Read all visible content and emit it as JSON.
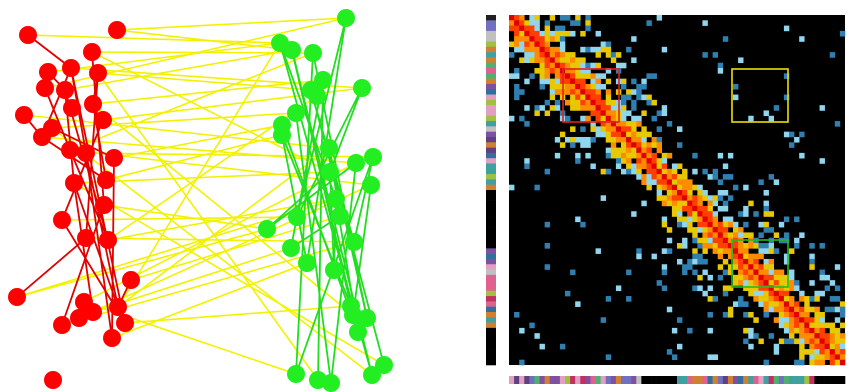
{
  "colors": {
    "background": "#ffffff",
    "group_a_node": "#ff0000",
    "group_a_edge": "#e00000",
    "group_b_node": "#22ee22",
    "group_b_edge": "#22dd22",
    "between_edge": "#f2f200",
    "matrix_background": "#000000",
    "highlight_red": "#e02020",
    "highlight_yellow": "#e8e000",
    "highlight_green": "#22bb22"
  },
  "network": {
    "group_a": {
      "name": "",
      "node_count": 33
    },
    "group_b": {
      "name": "",
      "node_count": 33
    }
  },
  "matrix": {
    "size": 66,
    "scale_colors": [
      "#000000",
      "#2f7fb0",
      "#8fd6ee",
      "#e8c800",
      "#ff8c00",
      "#ff4000",
      "#e00000"
    ],
    "highlight_boxes": [
      {
        "id": "red",
        "label": ""
      },
      {
        "id": "yellow",
        "label": ""
      },
      {
        "id": "green",
        "label": ""
      }
    ],
    "row_strip": {
      "block_split_fraction": 0.45
    },
    "column_strip": {
      "block_split_fraction": 0.45
    }
  }
}
